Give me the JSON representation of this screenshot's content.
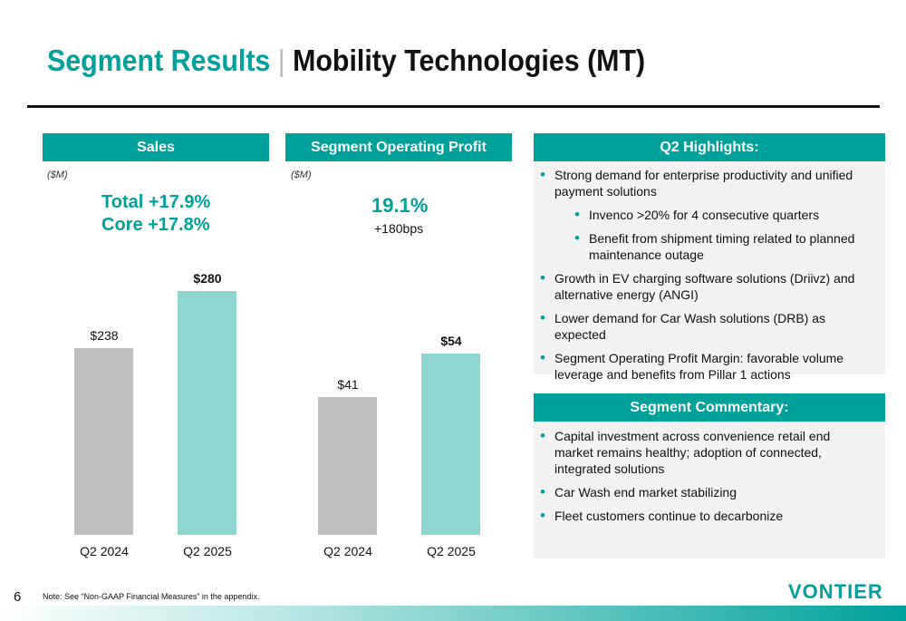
{
  "title": {
    "section": "Segment Results",
    "separator": "|",
    "segment": "Mobility Technologies (MT)"
  },
  "sales": {
    "header": "Sales",
    "unit": "($M)",
    "total": "Total  +17.9%",
    "core": "Core  +17.8%"
  },
  "profit": {
    "header": "Segment Operating Profit",
    "unit": "($M)",
    "margin": "19.1%",
    "change": "+180bps"
  },
  "highlights": {
    "header": "Q2 Highlights:",
    "items": [
      "Strong demand for enterprise productivity and unified payment solutions",
      "Invenco >20% for 4 consecutive quarters",
      "Benefit from shipment timing related to planned maintenance outage",
      "Growth in EV charging software solutions (Driivz) and alternative energy (ANGI)",
      "Lower demand for Car Wash solutions (DRB) as expected",
      "Segment Operating Profit Margin: favorable volume leverage and benefits from Pillar 1 actions"
    ]
  },
  "commentary": {
    "header": "Segment Commentary:",
    "items": [
      "Capital investment across convenience retail end market remains healthy; adoption of connected, integrated solutions",
      "Car Wash end market stabilizing",
      "Fleet customers continue to decarbonize"
    ]
  },
  "footer": {
    "page": "6",
    "note": "Note: See “Non-GAAP Financial Measures” in the appendix.",
    "logo": "VONTIER"
  },
  "colors": {
    "accent": "#00a19a",
    "prior": "#bfbfbf",
    "current": "#8fd6d0"
  },
  "chart_data": [
    {
      "type": "bar",
      "title": "Sales",
      "ylabel": "($M)",
      "categories": [
        "Q2 2024",
        "Q2 2025"
      ],
      "values": [
        238,
        280
      ],
      "labels": [
        "$238",
        "$280"
      ],
      "ylim": [
        100,
        281
      ]
    },
    {
      "type": "bar",
      "title": "Segment Operating Profit",
      "ylabel": "($M)",
      "categories": [
        "Q2 2024",
        "Q2 2025"
      ],
      "values": [
        41,
        54
      ],
      "labels": [
        "$41",
        "$54"
      ],
      "ylim": [
        0,
        73
      ]
    }
  ]
}
